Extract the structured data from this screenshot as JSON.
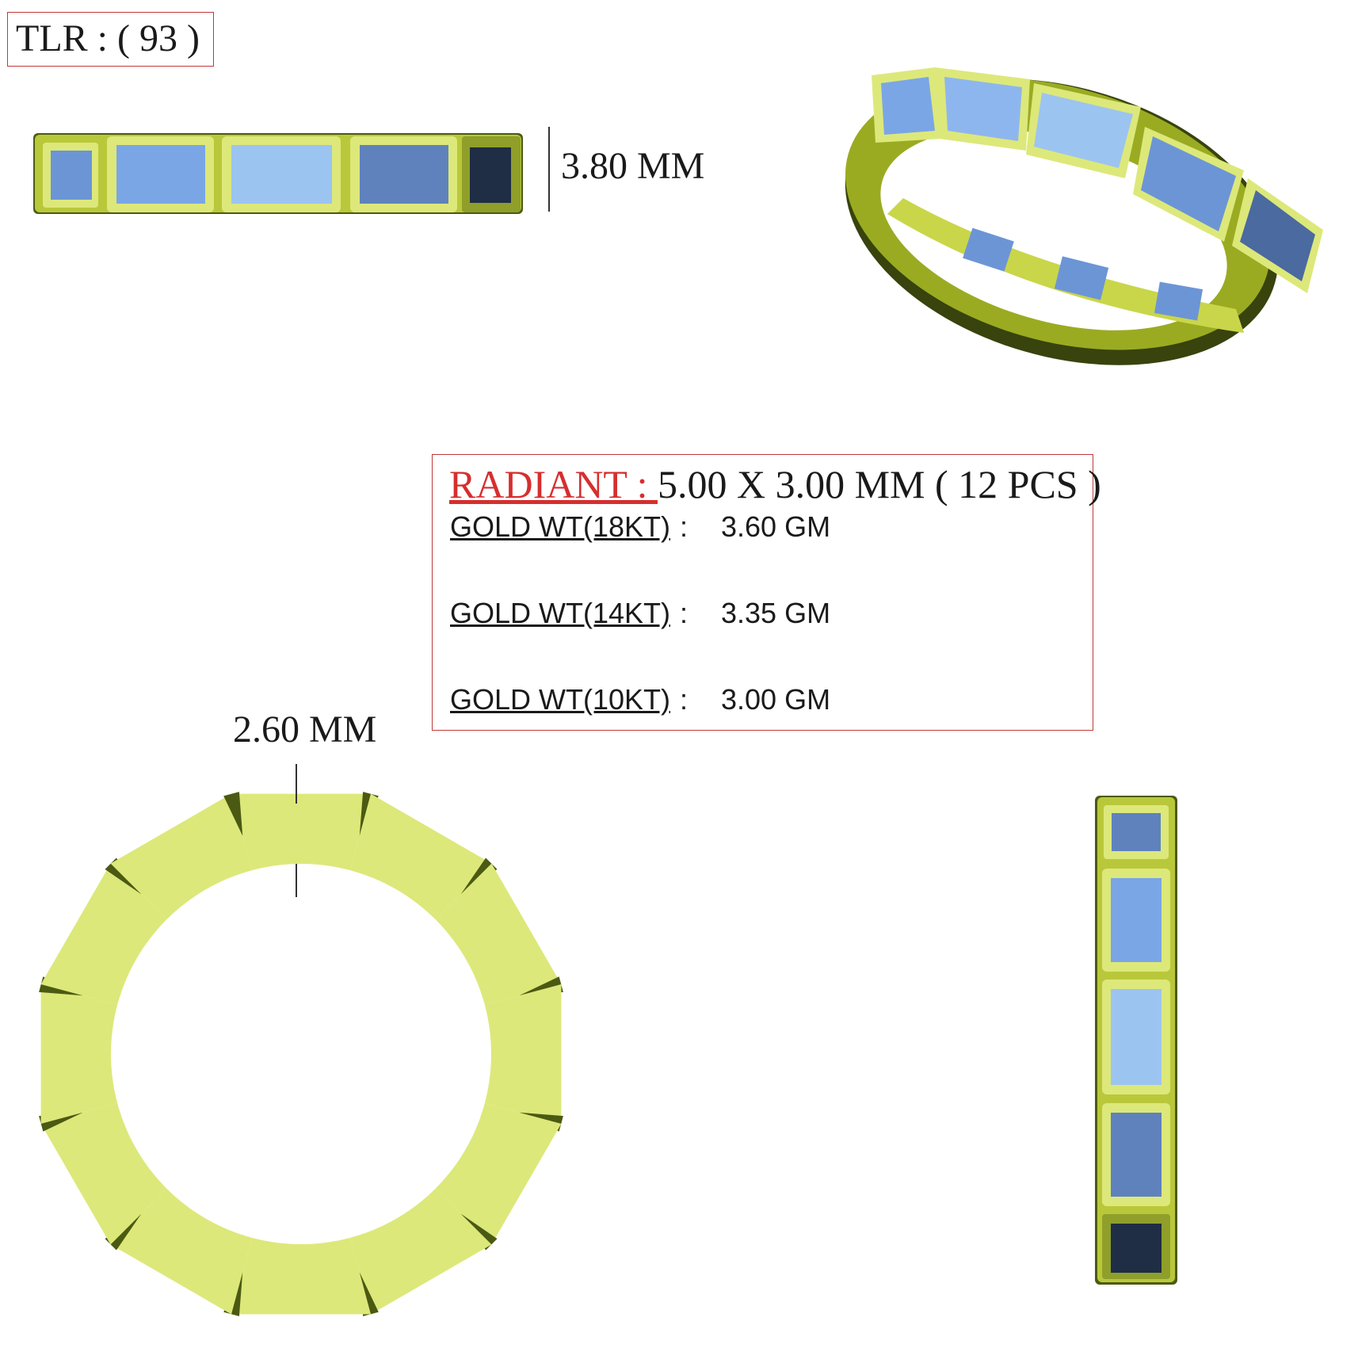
{
  "tlr_label": "TLR : ( 93 )",
  "width_dimension": "3.80 MM",
  "thickness_dimension": "2.60 MM",
  "spec": {
    "stone_type": "RADIANT : ",
    "stone_size": "5.00 X 3.00 MM ( 12 PCS )",
    "gold_weights": [
      {
        "label": "GOLD WT(18KT)",
        "separator": ":",
        "value": "3.60 GM"
      },
      {
        "label": "GOLD WT(14KT)",
        "separator": ":",
        "value": "3.35 GM"
      },
      {
        "label": "GOLD WT(10KT)",
        "separator": ":",
        "value": "3.00 GM"
      }
    ]
  },
  "colors": {
    "gold": "#dde87a",
    "gold_dark": "#4b5a12",
    "stone_light": "#9cc4f0",
    "stone_mid": "#6c95d6",
    "stone_dark": "#1f2d45",
    "label_red": "#d62e2e",
    "box_border": "#c0393b"
  }
}
